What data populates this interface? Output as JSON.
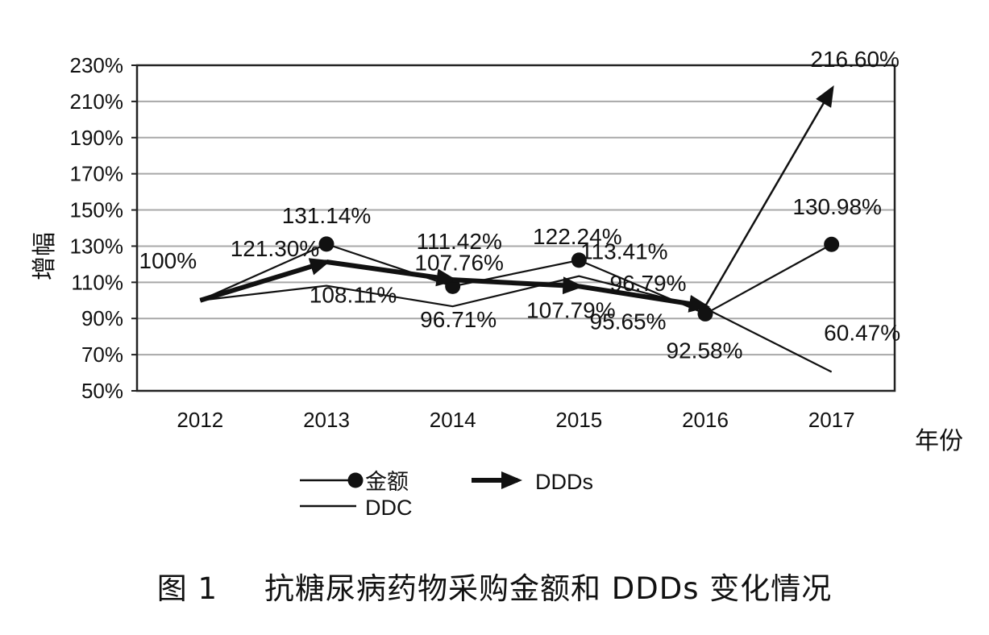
{
  "chart_data": {
    "type": "line",
    "categories": [
      "2012",
      "2013",
      "2014",
      "2015",
      "2016",
      "2017"
    ],
    "xlabel": "年份",
    "ylabel": "增幅",
    "ylim": [
      50,
      230
    ],
    "yticks": [
      "50%",
      "70%",
      "90%",
      "110%",
      "130%",
      "150%",
      "170%",
      "190%",
      "210%",
      "230%"
    ],
    "grid": true,
    "legend_position": "bottom",
    "series": [
      {
        "name": "金额",
        "style": "thin line, circle markers",
        "values": [
          100,
          131.14,
          107.76,
          122.24,
          92.58,
          130.98
        ],
        "labels": [
          "",
          "131.14%",
          "107.76%",
          "122.24%",
          "92.58%",
          "130.98%"
        ]
      },
      {
        "name": "DDDs",
        "style": "thick line, arrow markers",
        "values": [
          100,
          121.3,
          111.42,
          107.79,
          96.79,
          216.6
        ],
        "labels": [
          "100%",
          "121.30%",
          "111.42%",
          "107.79%",
          "96.79%",
          "216.60%"
        ]
      },
      {
        "name": "DDC",
        "style": "thin line, no markers",
        "values": [
          100,
          108.11,
          96.71,
          113.41,
          95.65,
          60.47
        ],
        "labels": [
          "",
          "108.11%",
          "96.71%",
          "113.41%",
          "95.65%",
          "60.47%"
        ]
      }
    ]
  },
  "caption": {
    "figure_number": "图 1",
    "text": "抗糖尿病药物采购金额和 DDDs 变化情况"
  }
}
